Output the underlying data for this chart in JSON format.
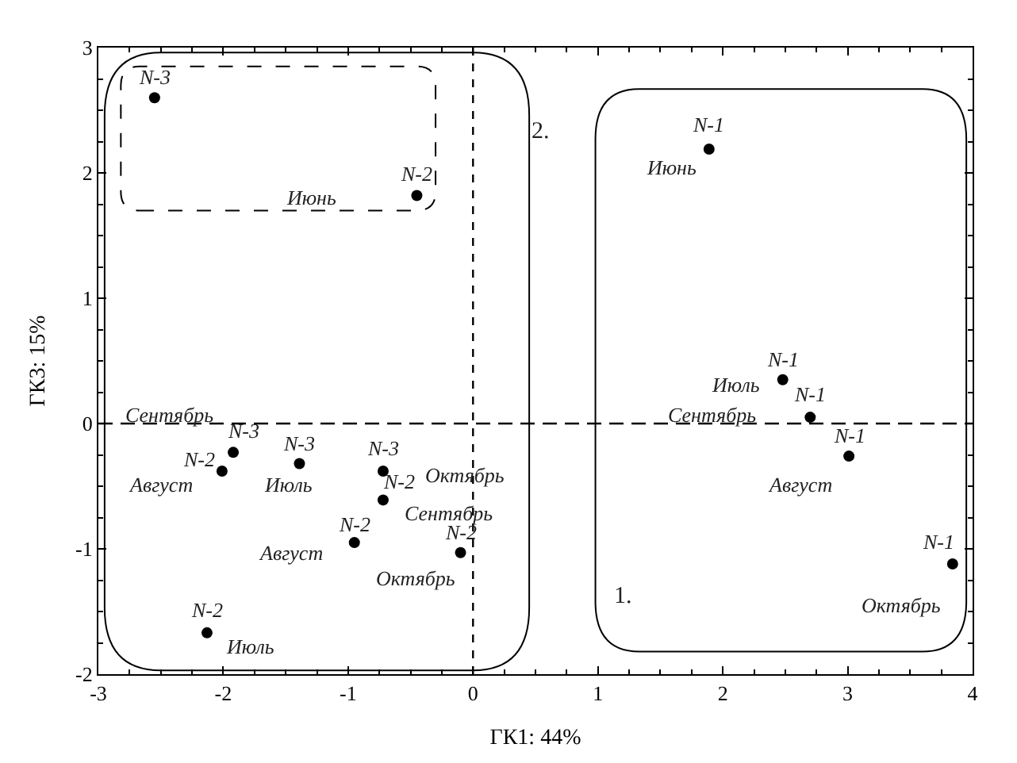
{
  "chart_data": {
    "type": "scatter",
    "xlabel": "ГК1: 44%",
    "ylabel": "ГК3: 15%",
    "x": [
      -2.55,
      -0.45,
      1.89,
      2.48,
      2.7,
      3.01,
      3.84,
      -1.92,
      -2.01,
      -1.39,
      -0.72,
      -0.72,
      -0.95,
      -0.1,
      -2.13
    ],
    "series": [
      {
        "color": "#000000",
        "values": [
          2.6,
          1.82,
          2.19,
          0.35,
          0.05,
          -0.26,
          -1.12,
          -0.23,
          -0.38,
          -0.32,
          -0.38,
          -0.61,
          -0.95,
          -1.03,
          -1.67
        ]
      }
    ],
    "marker": "circle",
    "xlim": [
      -3,
      4
    ],
    "ylim": [
      -2,
      3
    ],
    "xticks": [
      -3,
      -2,
      -1,
      0,
      1,
      2,
      3,
      4
    ],
    "yticks": [
      -2,
      -1,
      0,
      1,
      2,
      3
    ],
    "ref_lines": [
      {
        "axis": "x",
        "value": 0,
        "line_style": "dashed",
        "color": "#000000"
      },
      {
        "axis": "y",
        "value": 0,
        "line_style": "dashed",
        "color": "#000000"
      }
    ],
    "annotations": [
      {
        "text": "N-3",
        "x": -2.55,
        "y": 2.6
      },
      {
        "text": "N-2",
        "x": -0.45,
        "y": 1.82
      },
      "Июнь",
      {
        "text": "N-1",
        "x": 1.89,
        "y": 2.19
      },
      {
        "text": "Июнь",
        "x": 1.89,
        "y": 2.19
      },
      {
        "text": "N-1",
        "x": 2.48,
        "y": 0.35
      },
      {
        "text": "Июль",
        "x": 2.48,
        "y": 0.35
      },
      {
        "text": "N-1",
        "x": 2.7,
        "y": 0.05
      },
      {
        "text": "Сентябрь",
        "x": 2.7,
        "y": 0.05
      },
      {
        "text": "N-1",
        "x": 3.01,
        "y": -0.26
      },
      {
        "text": "Август",
        "x": 3.01,
        "y": -0.26
      },
      {
        "text": "N-1",
        "x": 3.84,
        "y": -1.12
      },
      {
        "text": "Октябрь",
        "x": 3.84,
        "y": -1.12
      },
      {
        "text": "N-3",
        "x": -1.92,
        "y": -0.23
      },
      {
        "text": "Сентябрь",
        "x": -1.92,
        "y": -0.23
      },
      {
        "text": "N-2",
        "x": -2.01,
        "y": -0.38
      },
      {
        "text": "Август",
        "x": -2.01,
        "y": -0.38
      },
      {
        "text": "N-3",
        "x": -1.39,
        "y": -0.32
      },
      {
        "text": "Июль",
        "x": -1.39,
        "y": -0.32
      },
      {
        "text": "N-3",
        "x": -0.72,
        "y": -0.38
      },
      {
        "text": "Октябрь",
        "x": -0.72,
        "y": -0.38
      },
      {
        "text": "N-2",
        "x": -0.72,
        "y": -0.61
      },
      {
        "text": "Сентябрь",
        "x": -0.72,
        "y": -0.61
      },
      {
        "text": "N-2",
        "x": -0.95,
        "y": -0.95
      },
      {
        "text": "Август",
        "x": -0.95,
        "y": -0.95
      },
      {
        "text": "N-2",
        "x": -0.1,
        "y": -1.03
      },
      {
        "text": "Октябрь",
        "x": -0.1,
        "y": -1.03
      },
      {
        "text": "N-2",
        "x": -2.13,
        "y": -1.67
      },
      {
        "text": "Июль",
        "x": -2.13,
        "y": -1.67
      },
      "1.",
      "2."
    ]
  }
}
